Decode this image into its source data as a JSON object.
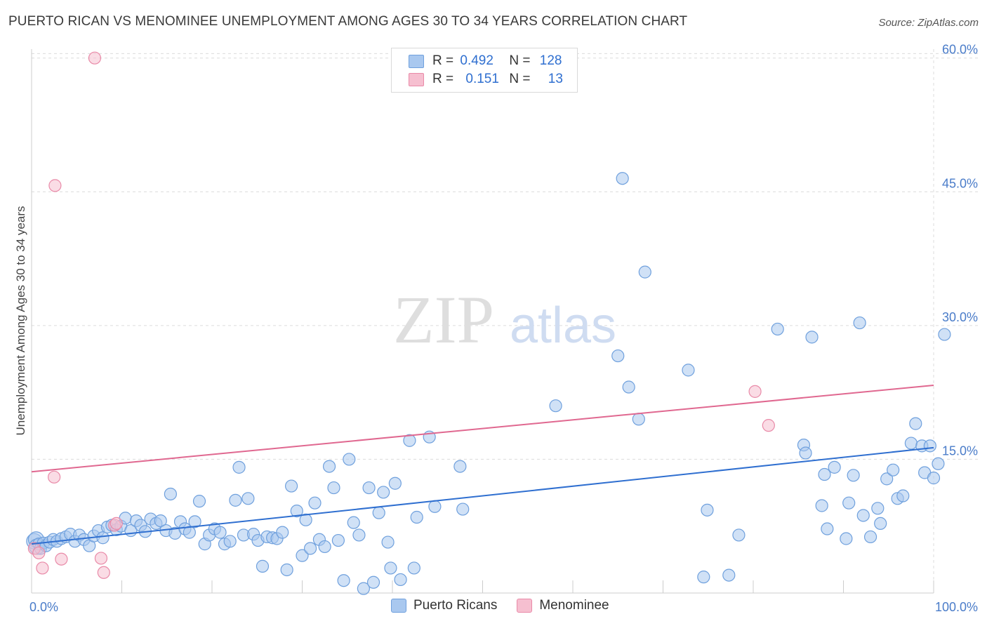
{
  "header": {
    "title": "PUERTO RICAN VS MENOMINEE UNEMPLOYMENT AMONG AGES 30 TO 34 YEARS CORRELATION CHART",
    "source": "Source: ZipAtlas.com"
  },
  "watermark": {
    "zip": "ZIP",
    "atlas": "atlas"
  },
  "legend": {
    "rows": [
      {
        "r_label": "R = ",
        "r_value": "0.492",
        "n_label": "N = ",
        "n_value": "128"
      },
      {
        "r_label": "R = ",
        "r_value": "0.151",
        "n_label": "N = ",
        "n_value": "13"
      }
    ]
  },
  "colors": {
    "puerto_fill": "#a9c8ef",
    "puerto_stroke": "#6fa0dd",
    "puerto_line": "#2f6fd0",
    "menominee_fill": "#f6bfd0",
    "menominee_stroke": "#e98aa8",
    "menominee_line": "#e06890",
    "grid": "#dcdcdc",
    "axis_text": "#4a7cc9"
  },
  "chart_data": {
    "type": "scatter",
    "title": "PUERTO RICAN VS MENOMINEE UNEMPLOYMENT AMONG AGES 30 TO 34 YEARS CORRELATION CHART",
    "xlabel": "",
    "ylabel": "Unemployment Among Ages 30 to 34 years",
    "xlim": [
      0,
      100
    ],
    "ylim": [
      0,
      61
    ],
    "x_tick_labels": [
      {
        "value": 0,
        "label": "0.0%"
      },
      {
        "value": 100,
        "label": "100.0%"
      }
    ],
    "y_tick_labels": [
      {
        "value": 15,
        "label": "15.0%"
      },
      {
        "value": 30,
        "label": "30.0%"
      },
      {
        "value": 45,
        "label": "45.0%"
      },
      {
        "value": 60,
        "label": "60.0%"
      }
    ],
    "series": [
      {
        "name": "Puerto Ricans",
        "trend": {
          "x0": 0,
          "y0": 5.5,
          "x1": 100,
          "y1": 16.3
        },
        "points": [
          [
            0.3,
            5.8
          ],
          [
            0.5,
            6.0
          ],
          [
            0.6,
            5.2
          ],
          [
            0.8,
            5.5
          ],
          [
            1.0,
            5.0
          ],
          [
            1.3,
            5.6
          ],
          [
            1.6,
            5.3
          ],
          [
            2.0,
            5.7
          ],
          [
            2.4,
            6.0
          ],
          [
            2.8,
            5.8
          ],
          [
            3.3,
            6.1
          ],
          [
            3.8,
            6.3
          ],
          [
            4.3,
            6.6
          ],
          [
            4.8,
            5.8
          ],
          [
            5.3,
            6.5
          ],
          [
            5.8,
            6.0
          ],
          [
            6.4,
            5.3
          ],
          [
            6.9,
            6.4
          ],
          [
            7.4,
            7.0
          ],
          [
            7.9,
            6.2
          ],
          [
            8.4,
            7.4
          ],
          [
            8.9,
            7.6
          ],
          [
            9.4,
            7.1
          ],
          [
            9.9,
            7.5
          ],
          [
            10.4,
            8.4
          ],
          [
            11.0,
            7.0
          ],
          [
            11.6,
            8.1
          ],
          [
            12.1,
            7.6
          ],
          [
            12.6,
            6.9
          ],
          [
            13.2,
            8.3
          ],
          [
            13.8,
            7.8
          ],
          [
            14.3,
            8.1
          ],
          [
            14.9,
            7.0
          ],
          [
            15.4,
            11.1
          ],
          [
            15.9,
            6.7
          ],
          [
            16.5,
            8.0
          ],
          [
            17.0,
            7.2
          ],
          [
            17.5,
            6.8
          ],
          [
            18.1,
            8.0
          ],
          [
            18.6,
            10.3
          ],
          [
            19.2,
            5.5
          ],
          [
            19.7,
            6.5
          ],
          [
            20.3,
            7.2
          ],
          [
            20.9,
            6.8
          ],
          [
            21.4,
            5.5
          ],
          [
            22.0,
            5.8
          ],
          [
            22.6,
            10.4
          ],
          [
            23.0,
            14.1
          ],
          [
            23.5,
            6.5
          ],
          [
            24.0,
            10.6
          ],
          [
            24.6,
            6.6
          ],
          [
            25.1,
            5.9
          ],
          [
            25.6,
            3.0
          ],
          [
            26.1,
            6.3
          ],
          [
            26.7,
            6.2
          ],
          [
            27.2,
            6.1
          ],
          [
            27.8,
            6.8
          ],
          [
            28.3,
            2.6
          ],
          [
            28.8,
            12.0
          ],
          [
            29.4,
            9.2
          ],
          [
            30.0,
            4.2
          ],
          [
            30.4,
            8.2
          ],
          [
            30.9,
            5.0
          ],
          [
            31.4,
            10.1
          ],
          [
            31.9,
            6.0
          ],
          [
            32.5,
            5.2
          ],
          [
            33.0,
            14.2
          ],
          [
            33.5,
            11.8
          ],
          [
            34.0,
            5.9
          ],
          [
            34.6,
            1.4
          ],
          [
            35.2,
            15.0
          ],
          [
            35.7,
            7.9
          ],
          [
            36.3,
            6.5
          ],
          [
            36.8,
            0.5
          ],
          [
            37.4,
            11.8
          ],
          [
            37.9,
            1.2
          ],
          [
            38.5,
            9.0
          ],
          [
            39.0,
            11.3
          ],
          [
            39.5,
            5.7
          ],
          [
            39.8,
            2.8
          ],
          [
            40.3,
            12.3
          ],
          [
            40.9,
            1.5
          ],
          [
            41.9,
            17.1
          ],
          [
            42.4,
            2.8
          ],
          [
            42.7,
            8.5
          ],
          [
            44.1,
            17.5
          ],
          [
            44.7,
            9.7
          ],
          [
            47.5,
            14.2
          ],
          [
            47.8,
            9.4
          ],
          [
            58.1,
            21.0
          ],
          [
            65.5,
            46.5
          ],
          [
            65.0,
            26.6
          ],
          [
            66.2,
            23.1
          ],
          [
            67.3,
            19.5
          ],
          [
            68.0,
            36.0
          ],
          [
            72.8,
            25.0
          ],
          [
            74.5,
            1.8
          ],
          [
            74.9,
            9.3
          ],
          [
            77.3,
            2.0
          ],
          [
            78.4,
            6.5
          ],
          [
            82.7,
            29.6
          ],
          [
            85.6,
            16.6
          ],
          [
            85.8,
            15.7
          ],
          [
            86.5,
            28.7
          ],
          [
            87.6,
            9.8
          ],
          [
            87.9,
            13.3
          ],
          [
            88.2,
            7.2
          ],
          [
            89.0,
            14.1
          ],
          [
            90.3,
            6.1
          ],
          [
            90.6,
            10.1
          ],
          [
            91.1,
            13.2
          ],
          [
            91.8,
            30.3
          ],
          [
            92.2,
            8.7
          ],
          [
            93.0,
            6.3
          ],
          [
            93.8,
            9.5
          ],
          [
            94.1,
            7.8
          ],
          [
            94.8,
            12.8
          ],
          [
            95.5,
            13.8
          ],
          [
            96.0,
            10.6
          ],
          [
            96.6,
            10.9
          ],
          [
            97.5,
            16.8
          ],
          [
            98.0,
            19.0
          ],
          [
            98.7,
            16.5
          ],
          [
            99.0,
            13.5
          ],
          [
            99.6,
            16.5
          ],
          [
            100.0,
            12.9
          ],
          [
            100.5,
            14.5
          ],
          [
            101.2,
            29.0
          ]
        ]
      },
      {
        "name": "Menominee",
        "trend": {
          "x0": 0,
          "y0": 13.6,
          "x1": 100,
          "y1": 23.3
        },
        "points": [
          [
            0.3,
            5.0
          ],
          [
            0.8,
            4.5
          ],
          [
            1.2,
            2.8
          ],
          [
            2.5,
            13.0
          ],
          [
            2.6,
            45.7
          ],
          [
            3.3,
            3.8
          ],
          [
            7.0,
            60.0
          ],
          [
            7.7,
            3.9
          ],
          [
            8.0,
            2.3
          ],
          [
            9.2,
            7.6
          ],
          [
            9.4,
            7.8
          ],
          [
            80.2,
            22.6
          ],
          [
            81.7,
            18.8
          ]
        ]
      }
    ]
  }
}
